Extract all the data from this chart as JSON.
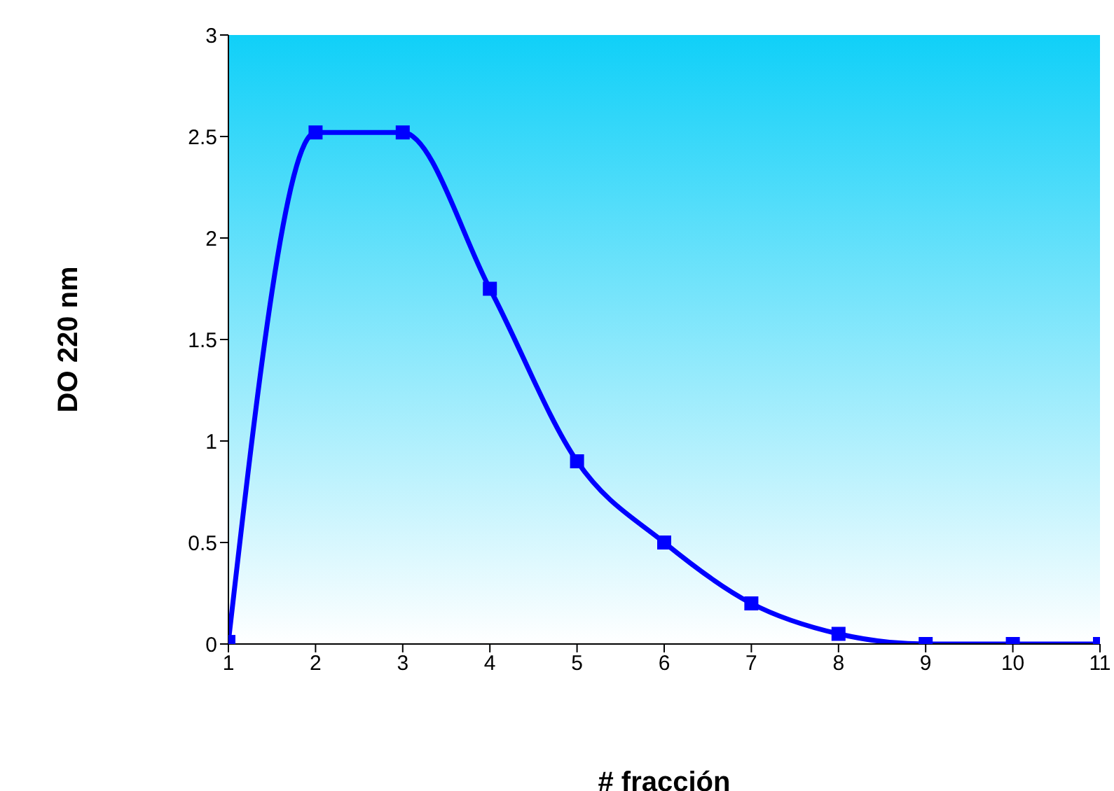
{
  "chart_data": {
    "type": "line",
    "xlabel": "# fracción",
    "ylabel": "DO 220 nm",
    "x": [
      1,
      2,
      3,
      4,
      5,
      6,
      7,
      8,
      9,
      10,
      11
    ],
    "series": [
      {
        "color": "#0000ff",
        "values": [
          0.01,
          2.52,
          2.52,
          1.75,
          0.9,
          0.5,
          0.2,
          0.05,
          0,
          0,
          0
        ]
      }
    ],
    "xlim": [
      1,
      11
    ],
    "xticks": [
      1,
      2,
      3,
      4,
      5,
      6,
      7,
      8,
      9,
      10,
      11
    ],
    "ylim": [
      0,
      3
    ],
    "yticks": [
      0,
      0.5,
      1,
      1.5,
      2,
      2.5,
      3
    ],
    "marker": "square",
    "line_style": "solid",
    "grid": false,
    "legend": false
  }
}
